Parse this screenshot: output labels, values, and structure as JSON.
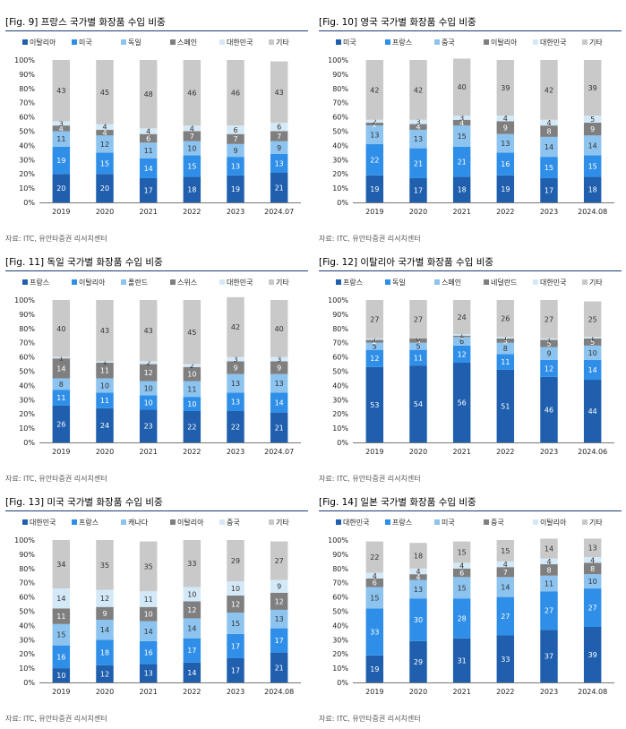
{
  "colors": {
    "dark_blue": "#1f5fae",
    "bright_blue": "#2f8fe8",
    "light_blue": "#8cc3ef",
    "gray_dark": "#7f7f7f",
    "pale_blue": "#d4e9f7",
    "light_gray": "#c9c9c9",
    "rule": "#1d3b7a"
  },
  "panels": [
    {
      "title": "[Fig. 9] 프랑스 국가별 화장품 수입 비중",
      "source": "자료: ITC, 유안타증권 리서치센터",
      "chart_data": {
        "type": "bar",
        "stacked": true,
        "categories": [
          "2019",
          "2020",
          "2021",
          "2022",
          "2023",
          "2024.07"
        ],
        "y_ticks": [
          "0%",
          "10%",
          "20%",
          "30%",
          "40%",
          "50%",
          "60%",
          "70%",
          "80%",
          "90%",
          "100%"
        ],
        "ylim": [
          0,
          100
        ],
        "legend_position": "top",
        "series": [
          {
            "name": "이탈리아",
            "color": "#1f5fae",
            "values": [
              20,
              20,
              17,
              18,
              19,
              21
            ]
          },
          {
            "name": "미국",
            "color": "#2f8fe8",
            "values": [
              19,
              15,
              14,
              15,
              13,
              13
            ]
          },
          {
            "name": "독일",
            "color": "#8cc3ef",
            "values": [
              11,
              12,
              11,
              10,
              9,
              9
            ]
          },
          {
            "name": "스페인",
            "color": "#7f7f7f",
            "values": [
              4,
              4,
              6,
              7,
              7,
              7
            ]
          },
          {
            "name": "대한민국",
            "color": "#d4e9f7",
            "values": [
              3,
              4,
              4,
              4,
              6,
              6
            ]
          },
          {
            "name": "기타",
            "color": "#c9c9c9",
            "values": [
              43,
              45,
              48,
              46,
              46,
              43
            ]
          }
        ]
      }
    },
    {
      "title": "[Fig. 10] 영국 국가별 화장품 수입 비중",
      "source": "자료: ITC, 유안타증권 리서치센터",
      "chart_data": {
        "type": "bar",
        "stacked": true,
        "categories": [
          "2019",
          "2020",
          "2021",
          "2022",
          "2023",
          "2024.08"
        ],
        "y_ticks": [
          "0%",
          "10%",
          "20%",
          "30%",
          "40%",
          "50%",
          "60%",
          "70%",
          "80%",
          "90%",
          "100%"
        ],
        "ylim": [
          0,
          100
        ],
        "legend_position": "top",
        "series": [
          {
            "name": "미국",
            "color": "#1f5fae",
            "values": [
              19,
              17,
              18,
              19,
              17,
              18
            ]
          },
          {
            "name": "프랑스",
            "color": "#2f8fe8",
            "values": [
              22,
              21,
              21,
              16,
              15,
              15
            ]
          },
          {
            "name": "중국",
            "color": "#8cc3ef",
            "values": [
              13,
              13,
              15,
              13,
              14,
              14
            ]
          },
          {
            "name": "이탈리아",
            "color": "#7f7f7f",
            "values": [
              2,
              4,
              4,
              9,
              8,
              9
            ]
          },
          {
            "name": "대한민국",
            "color": "#d4e9f7",
            "values": [
              2,
              3,
              3,
              4,
              4,
              5
            ]
          },
          {
            "name": "기타",
            "color": "#c9c9c9",
            "values": [
              42,
              42,
              40,
              39,
              42,
              39
            ]
          }
        ]
      }
    },
    {
      "title": "[Fig. 11] 독일 국가별 화장품 수입 비중",
      "source": "자료: ITC, 유안타증권 리서치센터",
      "chart_data": {
        "type": "bar",
        "stacked": true,
        "categories": [
          "2019",
          "2020",
          "2021",
          "2022",
          "2023",
          "2024.07"
        ],
        "y_ticks": [
          "0%",
          "10%",
          "20%",
          "30%",
          "40%",
          "50%",
          "60%",
          "70%",
          "80%",
          "90%",
          "100%"
        ],
        "ylim": [
          0,
          100
        ],
        "legend_position": "top",
        "series": [
          {
            "name": "프랑스",
            "color": "#1f5fae",
            "values": [
              26,
              24,
              23,
              22,
              22,
              21
            ]
          },
          {
            "name": "이탈리아",
            "color": "#2f8fe8",
            "values": [
              11,
              11,
              10,
              10,
              13,
              14
            ]
          },
          {
            "name": "폴란드",
            "color": "#8cc3ef",
            "values": [
              8,
              10,
              10,
              11,
              13,
              13
            ]
          },
          {
            "name": "스위스",
            "color": "#7f7f7f",
            "values": [
              14,
              11,
              12,
              10,
              9,
              9
            ]
          },
          {
            "name": "대한민국",
            "color": "#d4e9f7",
            "values": [
              1,
              1,
              2,
              2,
              3,
              3
            ]
          },
          {
            "name": "기타",
            "color": "#c9c9c9",
            "values": [
              40,
              43,
              43,
              45,
              42,
              40
            ]
          }
        ]
      }
    },
    {
      "title": "[Fig. 12] 이탈리아 국가별 화장품 수입 비중",
      "source": "자료: ITC, 유안타증권 리서치센터",
      "chart_data": {
        "type": "bar",
        "stacked": true,
        "categories": [
          "2019",
          "2020",
          "2021",
          "2022",
          "2023",
          "2024.06"
        ],
        "y_ticks": [
          "0%",
          "10%",
          "20%",
          "30%",
          "40%",
          "50%",
          "60%",
          "70%",
          "80%",
          "90%",
          "100%"
        ],
        "ylim": [
          0,
          100
        ],
        "legend_position": "top",
        "series": [
          {
            "name": "프랑스",
            "color": "#1f5fae",
            "values": [
              53,
              54,
              56,
              51,
              46,
              44
            ]
          },
          {
            "name": "독일",
            "color": "#2f8fe8",
            "values": [
              12,
              11,
              12,
              11,
              12,
              14
            ]
          },
          {
            "name": "스페인",
            "color": "#8cc3ef",
            "values": [
              5,
              5,
              6,
              8,
              9,
              10
            ]
          },
          {
            "name": "네덜란드",
            "color": "#7f7f7f",
            "values": [
              2,
              3,
              1,
              3,
              5,
              5
            ]
          },
          {
            "name": "대한민국",
            "color": "#d4e9f7",
            "values": [
              1,
              0,
              1,
              1,
              1,
              1
            ]
          },
          {
            "name": "기타",
            "color": "#c9c9c9",
            "values": [
              27,
              27,
              24,
              26,
              27,
              25
            ]
          }
        ]
      }
    },
    {
      "title": "[Fig. 13] 미국 국가별 화장품 수입 비중",
      "source": "자료: ITC, 유안타증권 리서치센터",
      "chart_data": {
        "type": "bar",
        "stacked": true,
        "categories": [
          "2019",
          "2020",
          "2021",
          "2022",
          "2023",
          "2024.08"
        ],
        "y_ticks": [
          "0%",
          "10%",
          "20%",
          "30%",
          "40%",
          "50%",
          "60%",
          "70%",
          "80%",
          "90%",
          "100%"
        ],
        "ylim": [
          0,
          100
        ],
        "legend_position": "top",
        "series": [
          {
            "name": "대한민국",
            "color": "#1f5fae",
            "values": [
              10,
              12,
              13,
              14,
              17,
              21
            ]
          },
          {
            "name": "프랑스",
            "color": "#2f8fe8",
            "values": [
              16,
              18,
              16,
              17,
              17,
              17
            ]
          },
          {
            "name": "캐나다",
            "color": "#8cc3ef",
            "values": [
              15,
              14,
              14,
              14,
              15,
              13
            ]
          },
          {
            "name": "이탈리아",
            "color": "#7f7f7f",
            "values": [
              11,
              9,
              10,
              12,
              12,
              12
            ]
          },
          {
            "name": "중국",
            "color": "#d4e9f7",
            "values": [
              14,
              12,
              11,
              10,
              10,
              9
            ]
          },
          {
            "name": "기타",
            "color": "#c9c9c9",
            "values": [
              34,
              35,
              35,
              33,
              29,
              27
            ]
          }
        ]
      }
    },
    {
      "title": "[Fig. 14] 일본 국가별 화장품 수입 비중",
      "source": "자료: ITC, 유안타증권 리서치센터",
      "chart_data": {
        "type": "bar",
        "stacked": true,
        "categories": [
          "2019",
          "2020",
          "2021",
          "2022",
          "2023",
          "2024.08"
        ],
        "y_ticks": [
          "0%",
          "10%",
          "20%",
          "30%",
          "40%",
          "50%",
          "60%",
          "70%",
          "80%",
          "90%",
          "100%"
        ],
        "ylim": [
          0,
          100
        ],
        "legend_position": "top",
        "series": [
          {
            "name": "대한민국",
            "color": "#1f5fae",
            "values": [
              19,
              29,
              31,
              33,
              37,
              39
            ]
          },
          {
            "name": "프랑스",
            "color": "#2f8fe8",
            "values": [
              33,
              30,
              28,
              27,
              27,
              27
            ]
          },
          {
            "name": "미국",
            "color": "#8cc3ef",
            "values": [
              15,
              13,
              15,
              14,
              11,
              10
            ]
          },
          {
            "name": "중국",
            "color": "#7f7f7f",
            "values": [
              6,
              4,
              6,
              7,
              8,
              8
            ]
          },
          {
            "name": "이탈리아",
            "color": "#d4e9f7",
            "values": [
              4,
              4,
              4,
              4,
              4,
              4
            ]
          },
          {
            "name": "기타",
            "color": "#c9c9c9",
            "values": [
              22,
              18,
              15,
              15,
              14,
              13
            ]
          }
        ]
      }
    }
  ]
}
